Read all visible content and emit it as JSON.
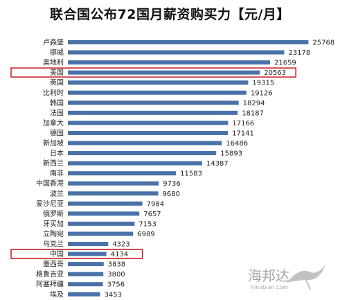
{
  "chart_data": {
    "type": "bar",
    "orientation": "horizontal",
    "title": "联合国公布72国月薪资购买力【元/月】",
    "categories": [
      "卢森堡",
      "挪威",
      "奥地利",
      "美国",
      "英国",
      "比利时",
      "韩国",
      "法国",
      "加拿大",
      "德国",
      "新加坡",
      "日本",
      "新西兰",
      "南非",
      "中国香港",
      "波兰",
      "爱沙尼亚",
      "俄罗斯",
      "牙买加",
      "立陶宛",
      "乌克兰",
      "中国",
      "墨西哥",
      "格鲁吉亚",
      "阿塞拜疆",
      "埃及"
    ],
    "values": [
      25768,
      23178,
      21659,
      20563,
      19315,
      19126,
      18294,
      18187,
      17166,
      17141,
      16486,
      15893,
      14387,
      11583,
      9736,
      9680,
      7984,
      7657,
      7153,
      6989,
      4323,
      4134,
      3838,
      3800,
      3756,
      3453
    ],
    "highlighted": [
      "美国",
      "中国"
    ],
    "xlim": [
      0,
      27000
    ],
    "grid": false,
    "colors": {
      "bar": "#4a72a8",
      "highlight": "#c8232c"
    }
  },
  "watermark": {
    "text": "海邦达",
    "sub": "hinabian.com"
  }
}
